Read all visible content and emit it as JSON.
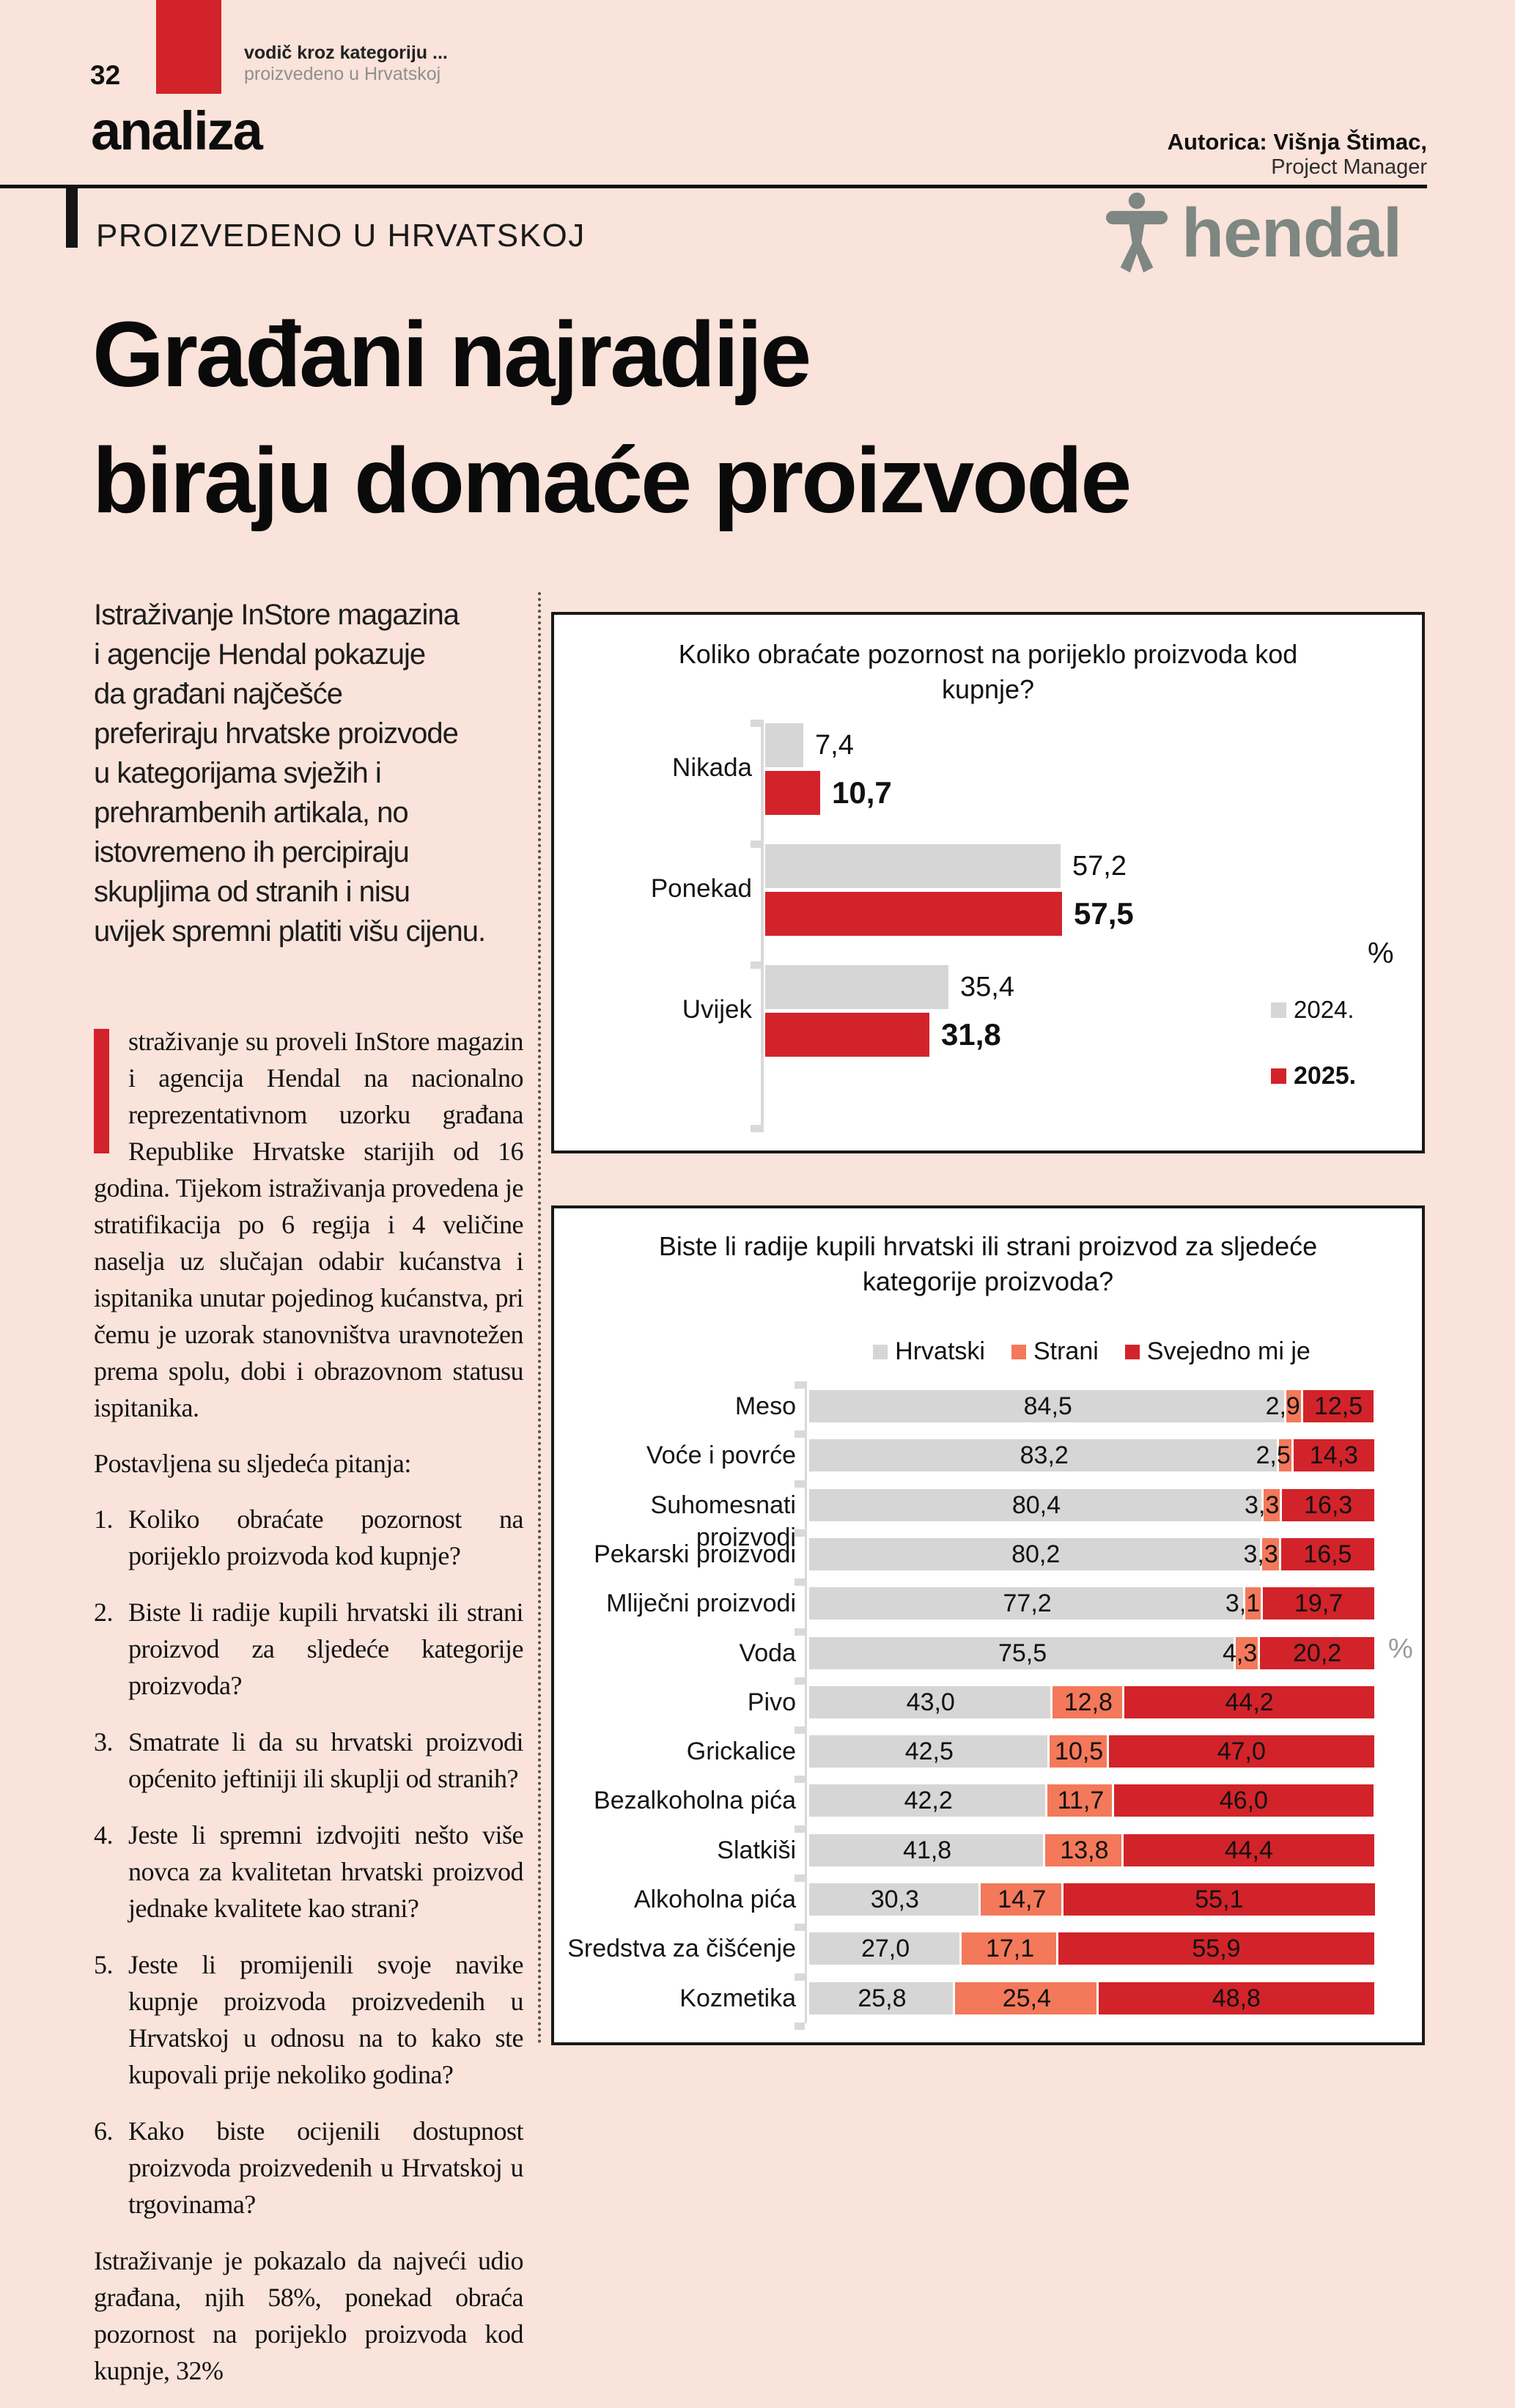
{
  "page": {
    "page_number": "32",
    "kicker_line1": "vodič kroz kategoriju ...",
    "kicker_line2": "proizvedeno u Hrvatskoj",
    "section": "analiza",
    "author_label": "Autorica: Višnja Štimac,",
    "author_role": "Project Manager",
    "eyebrow": "PROIZVEDENO U HRVATSKOJ",
    "brand": "hendal",
    "headline_line1": "Građani najradije",
    "headline_line2": "biraju domaće proizvode"
  },
  "article": {
    "intro": "Istraživanje InStore magazina\ni agencije Hendal pokazuje\nda građani najčešće\npreferiraju hrvatske proizvode\nu kategorijama svježih i\nprehrambenih artikala, no\nistovremeno ih percipiraju\nskupljima od stranih i nisu\nuvijek spremni platiti višu cijenu.",
    "body_p1": "straživanje su proveli InStore magazin i agencija Hendal na nacionalno reprezentativnom uzorku građana Republike Hrvatske starijih od 16 godina. Tijekom istraživanja provedena je stratifikacija po 6 regija i 4 veličine naselja uz slučajan odabir kućanstva i ispitanika unutar pojedinog kućanstva, pri čemu je uzorak stanovništva uravnotežen prema spolu, dobi i obrazovnom statusu ispitanika.",
    "questions_intro": "Postavljena su sljedeća pitanja:",
    "questions": [
      {
        "num": "1.",
        "text": "Koliko obraćate pozornost na porijeklo proizvoda kod kupnje?"
      },
      {
        "num": "2.",
        "text": "Biste li radije kupili hrvatski ili strani proizvod za sljedeće kategorije proizvoda?"
      },
      {
        "num": "3.",
        "text": "Smatrate li da su hrvatski proizvodi općenito jeftiniji ili skuplji od stranih?"
      },
      {
        "num": "4.",
        "text": "Jeste li spremni izdvojiti nešto više novca za kvalitetan hrvatski proizvod jednake kvalitete kao strani?"
      },
      {
        "num": "5.",
        "text": "Jeste li promijenili svoje navike kupnje proizvoda proizvedenih u Hrvatskoj u odnosu na to kako ste kupovali prije nekoliko godina?"
      },
      {
        "num": "6.",
        "text": "Kako biste ocijenili dostupnost proizvoda proizvedenih u Hrvatskoj u trgovinama?"
      }
    ],
    "closing": "Istraživanje je pokazalo da najveći udio građana, njih 58%, ponekad obraća pozornost na porijeklo proizvoda kod kupnje, 32%"
  },
  "colors": {
    "page_bg": "#f9e3da",
    "accent_red": "#d2232a",
    "salmon": "#f3795a",
    "bar_gray": "#d6d6d6",
    "brand_gray": "#7e8781"
  },
  "chart_data": [
    {
      "type": "bar",
      "orientation": "horizontal",
      "grouped": true,
      "title": "Koliko obraćate pozornost na porijeklo proizvoda kod kupnje?",
      "unit": "%",
      "xlim": [
        0,
        60
      ],
      "grid": false,
      "legend_position": "right",
      "categories": [
        "Nikada",
        "Ponekad",
        "Uvijek"
      ],
      "series": [
        {
          "name": "2024.",
          "color": "#d6d6d6",
          "values": [
            7.4,
            57.2,
            35.4
          ]
        },
        {
          "name": "2025.",
          "color": "#d2232a",
          "values": [
            10.7,
            57.5,
            31.8
          ]
        }
      ],
      "value_labels": [
        [
          "7,4",
          "57,2",
          "35,4"
        ],
        [
          "10,7",
          "57,5",
          "31,8"
        ]
      ]
    },
    {
      "type": "bar",
      "orientation": "horizontal",
      "stacked": true,
      "title": "Biste li radije kupili hrvatski ili strani proizvod za sljedeće kategorije proizvoda?",
      "unit": "%",
      "xlim": [
        0,
        100
      ],
      "grid": false,
      "legend_position": "top",
      "categories": [
        "Meso",
        "Voće i povrće",
        "Suhomesnati proizvodi",
        "Pekarski proizvodi",
        "Mliječni proizvodi",
        "Voda",
        "Pivo",
        "Grickalice",
        "Bezalkoholna pića",
        "Slatkiši",
        "Alkoholna pića",
        "Sredstva za čišćenje",
        "Kozmetika"
      ],
      "series": [
        {
          "name": "Hrvatski",
          "color": "#d6d6d6",
          "values": [
            84.5,
            83.2,
            80.4,
            80.2,
            77.2,
            75.5,
            43.0,
            42.5,
            42.2,
            41.8,
            30.3,
            27.0,
            25.8
          ]
        },
        {
          "name": "Strani",
          "color": "#f3795a",
          "values": [
            2.9,
            2.5,
            3.3,
            3.3,
            3.1,
            4.3,
            12.8,
            10.5,
            11.7,
            13.8,
            14.7,
            17.1,
            25.4
          ]
        },
        {
          "name": "Svejedno mi je",
          "color": "#d2232a",
          "values": [
            12.5,
            14.3,
            16.3,
            16.5,
            19.7,
            20.2,
            44.2,
            47.0,
            46.0,
            44.4,
            55.1,
            55.9,
            48.8
          ]
        }
      ],
      "value_labels": [
        [
          "84,5",
          "83,2",
          "80,4",
          "80,2",
          "77,2",
          "75,5",
          "43,0",
          "42,5",
          "42,2",
          "41,8",
          "30,3",
          "27,0",
          "25,8"
        ],
        [
          "2,9",
          "2,5",
          "3,3",
          "3,3",
          "3,1",
          "4,3",
          "12,8",
          "10,5",
          "11,7",
          "13,8",
          "14,7",
          "17,1",
          "25,4"
        ],
        [
          "12,5",
          "14,3",
          "16,3",
          "16,5",
          "19,7",
          "20,2",
          "44,2",
          "47,0",
          "46,0",
          "44,4",
          "55,1",
          "55,9",
          "48,8"
        ]
      ]
    }
  ]
}
